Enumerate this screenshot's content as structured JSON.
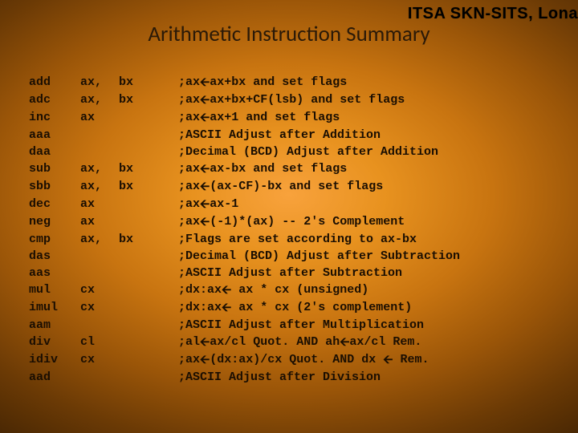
{
  "brand": "ITSA SKN-SITS, Lona",
  "title": "Arithmetic Instruction Summary",
  "arrow_glyph": "🡨",
  "colors": {
    "text_title": "#2b1a08",
    "text_body": "#1a0e02",
    "brand": "#000000",
    "bg_center": "#f8a23c",
    "bg_edge": "#000000"
  },
  "typography": {
    "title_family": "Calibri",
    "title_fontsize_pt": 20,
    "mono_family": "Courier New",
    "mono_fontsize_pt": 11,
    "mono_weight": "bold",
    "brand_fontsize_pt": 15,
    "brand_weight": 900
  },
  "columns": [
    "instruction",
    "operand1",
    "operand2",
    "description"
  ],
  "rows": [
    {
      "i": "add",
      "op1": "ax,",
      "op2": "bx",
      "desc": ";ax🡨ax+bx and set flags"
    },
    {
      "i": "adc",
      "op1": "ax,",
      "op2": "bx",
      "desc": ";ax🡨ax+bx+CF(lsb) and set flags"
    },
    {
      "i": "inc",
      "op1": "ax",
      "op2": "",
      "desc": ";ax🡨ax+1 and set flags"
    },
    {
      "i": "aaa",
      "op1": "",
      "op2": "",
      "desc": ";ASCII Adjust after Addition"
    },
    {
      "i": "daa",
      "op1": "",
      "op2": "",
      "desc": ";Decimal (BCD) Adjust after Addition"
    },
    {
      "i": "sub",
      "op1": "ax,",
      "op2": "bx",
      "desc": ";ax🡨ax-bx and set flags"
    },
    {
      "i": "sbb",
      "op1": "ax,",
      "op2": "bx",
      "desc": ";ax🡨(ax-CF)-bx and set flags"
    },
    {
      "i": "dec",
      "op1": "ax",
      "op2": "",
      "desc": ";ax🡨ax-1"
    },
    {
      "i": "neg",
      "op1": "ax",
      "op2": "",
      "desc": ";ax🡨(-1)*(ax) -- 2's Complement"
    },
    {
      "i": "cmp",
      "op1": "ax,",
      "op2": "bx",
      "desc": ";Flags are set according to ax-bx"
    },
    {
      "i": "das",
      "op1": "",
      "op2": "",
      "desc": ";Decimal (BCD) Adjust after Subtraction"
    },
    {
      "i": "aas",
      "op1": "",
      "op2": "",
      "desc": ";ASCII Adjust after Subtraction"
    },
    {
      "i": "mul",
      "op1": "cx",
      "op2": "",
      "desc": ";dx:ax🡨 ax * cx (unsigned)"
    },
    {
      "i": "imul",
      "op1": "cx",
      "op2": "",
      "desc": ";dx:ax🡨 ax * cx (2's complement)"
    },
    {
      "i": "aam",
      "op1": "",
      "op2": "",
      "desc": ";ASCII Adjust after Multiplication"
    },
    {
      "i": "div",
      "op1": "cl",
      "op2": "",
      "desc": ";al🡨ax/cl Quot. AND ah🡨ax/cl Rem."
    },
    {
      "i": "idiv",
      "op1": "cx",
      "op2": "",
      "desc": ";ax🡨(dx:ax)/cx Quot. AND dx 🡨 Rem."
    },
    {
      "i": "aad",
      "op1": "",
      "op2": "",
      "desc": ";ASCII Adjust after Division"
    }
  ]
}
